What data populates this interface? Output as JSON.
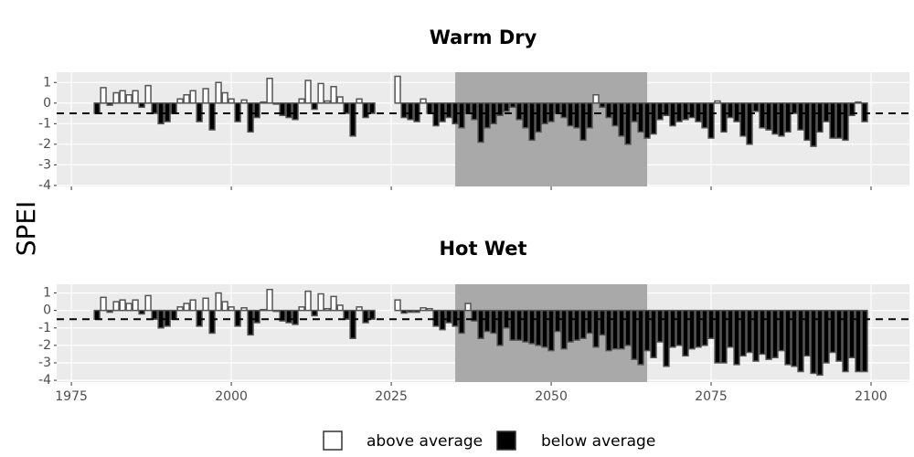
{
  "chart_data": [
    {
      "type": "bar",
      "title": "Warm Dry",
      "y_label": "SPEI",
      "x": [
        1979,
        1980,
        1981,
        1982,
        1983,
        1984,
        1985,
        1986,
        1987,
        1988,
        1989,
        1990,
        1991,
        1992,
        1993,
        1994,
        1995,
        1996,
        1997,
        1998,
        1999,
        2000,
        2001,
        2002,
        2003,
        2004,
        2005,
        2006,
        2007,
        2008,
        2009,
        2010,
        2011,
        2012,
        2013,
        2014,
        2015,
        2016,
        2017,
        2018,
        2019,
        2020,
        2021,
        2022,
        2026,
        2027,
        2028,
        2029,
        2030,
        2031,
        2032,
        2033,
        2034,
        2035,
        2036,
        2037,
        2038,
        2039,
        2040,
        2041,
        2042,
        2043,
        2044,
        2045,
        2046,
        2047,
        2048,
        2049,
        2050,
        2051,
        2052,
        2053,
        2054,
        2055,
        2056,
        2057,
        2058,
        2059,
        2060,
        2061,
        2062,
        2063,
        2064,
        2065,
        2066,
        2067,
        2068,
        2069,
        2070,
        2071,
        2072,
        2073,
        2074,
        2075,
        2076,
        2077,
        2078,
        2079,
        2080,
        2081,
        2082,
        2083,
        2084,
        2085,
        2086,
        2087,
        2088,
        2089,
        2090,
        2091,
        2092,
        2093,
        2094,
        2095,
        2096,
        2097,
        2098,
        2099
      ],
      "values": [
        -0.5,
        0.75,
        -0.1,
        0.5,
        0.6,
        0.4,
        0.6,
        -0.2,
        0.85,
        -0.5,
        -1.0,
        -0.9,
        -0.5,
        0.2,
        0.4,
        0.6,
        -0.9,
        0.7,
        -1.3,
        1.0,
        0.5,
        0.2,
        -0.9,
        0.15,
        -1.4,
        -0.7,
        0.05,
        1.2,
        -0.05,
        -0.6,
        -0.7,
        -0.8,
        0.2,
        1.1,
        -0.3,
        0.95,
        0.1,
        0.8,
        0.3,
        -0.5,
        -1.6,
        0.2,
        -0.7,
        -0.5,
        1.3,
        -0.7,
        -0.8,
        -0.9,
        0.2,
        -0.5,
        -1.1,
        -0.9,
        -0.7,
        -1.0,
        -1.2,
        -0.5,
        -0.8,
        -1.9,
        -1.2,
        -1.0,
        -0.6,
        -0.4,
        -0.2,
        -0.8,
        -1.2,
        -1.8,
        -1.4,
        -1.0,
        -0.9,
        -0.5,
        -0.7,
        -1.1,
        -1.2,
        -1.8,
        -1.2,
        0.4,
        -0.2,
        -0.7,
        -1.1,
        -1.6,
        -2.0,
        -0.9,
        -1.4,
        -1.7,
        -1.5,
        -0.8,
        -0.6,
        -1.1,
        -0.9,
        -0.8,
        -0.7,
        -0.9,
        -1.2,
        -1.7,
        0.1,
        -1.4,
        -0.7,
        -0.9,
        -1.6,
        -2.0,
        -0.4,
        -1.2,
        -1.3,
        -1.5,
        -1.6,
        -1.4,
        -0.5,
        -1.3,
        -1.8,
        -2.1,
        -1.4,
        -0.9,
        -1.7,
        -1.7,
        -1.8,
        -0.6,
        0.05,
        -0.9
      ],
      "xlim": [
        1972.7,
        2106
      ],
      "ylim": [
        -4.05,
        1.5
      ],
      "yticks": [
        -4,
        -3,
        -2,
        -1,
        0,
        1
      ],
      "highlight": [
        2035,
        2065
      ],
      "reference_line": -0.5,
      "grid": true
    },
    {
      "type": "bar",
      "title": "Hot Wet",
      "x": [
        1979,
        1980,
        1981,
        1982,
        1983,
        1984,
        1985,
        1986,
        1987,
        1988,
        1989,
        1990,
        1991,
        1992,
        1993,
        1994,
        1995,
        1996,
        1997,
        1998,
        1999,
        2000,
        2001,
        2002,
        2003,
        2004,
        2005,
        2006,
        2007,
        2008,
        2009,
        2010,
        2011,
        2012,
        2013,
        2014,
        2015,
        2016,
        2017,
        2018,
        2019,
        2020,
        2021,
        2022,
        2026,
        2027,
        2028,
        2029,
        2030,
        2031,
        2032,
        2033,
        2034,
        2035,
        2036,
        2037,
        2038,
        2039,
        2040,
        2041,
        2042,
        2043,
        2044,
        2045,
        2046,
        2047,
        2048,
        2049,
        2050,
        2051,
        2052,
        2053,
        2054,
        2055,
        2056,
        2057,
        2058,
        2059,
        2060,
        2061,
        2062,
        2063,
        2064,
        2065,
        2066,
        2067,
        2068,
        2069,
        2070,
        2071,
        2072,
        2073,
        2074,
        2075,
        2076,
        2077,
        2078,
        2079,
        2080,
        2081,
        2082,
        2083,
        2084,
        2085,
        2086,
        2087,
        2088,
        2089,
        2090,
        2091,
        2092,
        2093,
        2094,
        2095,
        2096,
        2097,
        2098,
        2099
      ],
      "values": [
        -0.5,
        0.75,
        -0.1,
        0.5,
        0.6,
        0.4,
        0.6,
        -0.2,
        0.85,
        -0.5,
        -1.0,
        -0.9,
        -0.5,
        0.2,
        0.4,
        0.6,
        -0.9,
        0.7,
        -1.3,
        1.0,
        0.5,
        0.2,
        -0.9,
        0.15,
        -1.4,
        -0.7,
        0.05,
        1.2,
        -0.05,
        -0.6,
        -0.7,
        -0.8,
        0.2,
        1.1,
        -0.3,
        0.95,
        0.1,
        0.8,
        0.3,
        -0.5,
        -1.6,
        0.2,
        -0.7,
        -0.5,
        0.6,
        -0.15,
        -0.1,
        -0.1,
        0.15,
        0.1,
        -0.9,
        -1.1,
        -0.7,
        -0.9,
        -1.3,
        0.4,
        -0.6,
        -1.6,
        -1.2,
        -1.3,
        -2.0,
        -1.0,
        -1.7,
        -1.7,
        -1.8,
        -1.9,
        -2.0,
        -2.1,
        -2.3,
        -1.2,
        -2.2,
        -1.8,
        -1.7,
        -1.6,
        -1.3,
        -2.1,
        -1.4,
        -2.3,
        -2.2,
        -2.2,
        -2.0,
        -2.8,
        -3.1,
        -2.3,
        -2.7,
        -1.8,
        -3.2,
        -2.1,
        -2.0,
        -2.6,
        -2.2,
        -2.1,
        -2.0,
        -1.6,
        -3.0,
        -3.0,
        -2.1,
        -3.1,
        -2.6,
        -2.4,
        -2.9,
        -2.5,
        -2.8,
        -2.7,
        -2.3,
        -3.1,
        -3.2,
        -3.5,
        -2.6,
        -3.6,
        -3.7,
        -3.0,
        -2.4,
        -2.9,
        -3.5,
        -2.7,
        -3.5,
        -3.5
      ],
      "xlim": [
        1972.7,
        2106
      ],
      "ylim": [
        -4.1,
        1.5
      ],
      "yticks": [
        -4,
        -3,
        -2,
        -1,
        0,
        1
      ],
      "xticks": [
        1975,
        2000,
        2025,
        2050,
        2075,
        2100
      ],
      "highlight": [
        2035,
        2065
      ],
      "reference_line": -0.5,
      "grid": true
    }
  ],
  "legend": {
    "position": "bottom",
    "entries": [
      {
        "name": "above average",
        "color": "#ffffff"
      },
      {
        "name": "below average",
        "color": "#000000"
      }
    ]
  }
}
